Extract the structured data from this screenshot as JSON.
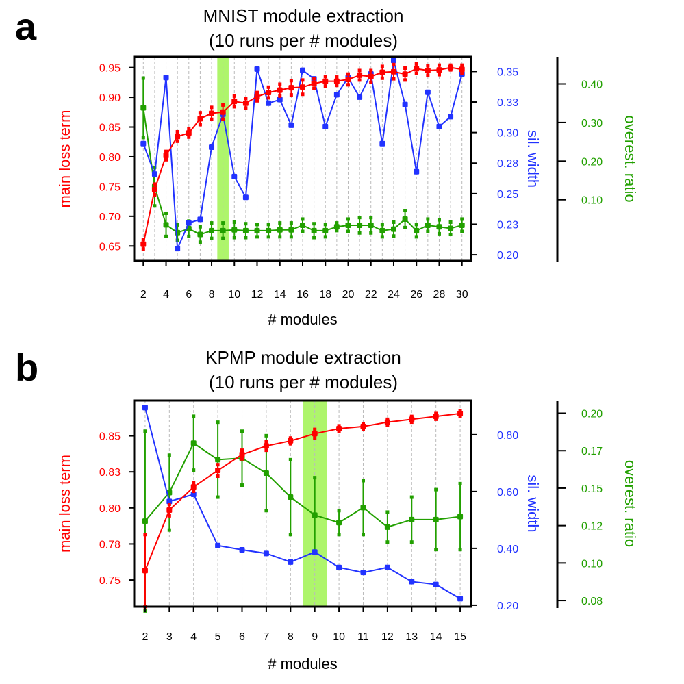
{
  "colors": {
    "loss": "#ff0000",
    "sil": "#2233ff",
    "over": "#22a000",
    "highlight": "#aef56b",
    "grid": "#bbbbbb"
  },
  "chart_data": [
    {
      "panel_label": "a",
      "type": "line",
      "title_line1": "MNIST module extraction",
      "title_line2": "(10 runs per # modules)",
      "xlabel": "# modules",
      "x_tick_labels": [
        "2",
        "4",
        "6",
        "8",
        "10",
        "12",
        "14",
        "16",
        "18",
        "20",
        "22",
        "24",
        "26",
        "28",
        "30"
      ],
      "x_tick_values": [
        2,
        4,
        6,
        8,
        10,
        12,
        14,
        16,
        18,
        20,
        22,
        24,
        26,
        28,
        30
      ],
      "xlim": [
        1.2,
        30.8
      ],
      "highlight_x": 9,
      "left_axis": {
        "label": "main loss term",
        "ylim": [
          0.625,
          0.968
        ],
        "tick_values": [
          0.65,
          0.7,
          0.75,
          0.8,
          0.85,
          0.9,
          0.95
        ],
        "tick_labels": [
          "0.65",
          "0.70",
          "0.75",
          "0.80",
          "0.85",
          "0.90",
          "0.95"
        ]
      },
      "right_axis": {
        "label": "sil. width",
        "ylim": [
          0.195,
          0.362
        ],
        "tick_values": [
          0.2,
          0.225,
          0.25,
          0.275,
          0.3,
          0.325,
          0.35
        ],
        "tick_labels": [
          "0.20",
          "0.23",
          "0.25",
          "0.28",
          "0.30",
          "0.33",
          "0.35"
        ]
      },
      "outer_axis": {
        "label": "overest. ratio",
        "ylim": [
          -0.06,
          0.47
        ],
        "tick_values": [
          0.1,
          0.2,
          0.3,
          0.4
        ],
        "tick_labels": [
          "0.10",
          "0.20",
          "0.30",
          "0.40"
        ]
      },
      "series": [
        {
          "name": "main loss term",
          "axis": "left",
          "color_key": "loss",
          "x": [
            2,
            3,
            4,
            5,
            6,
            7,
            8,
            9,
            10,
            11,
            12,
            13,
            14,
            15,
            16,
            17,
            18,
            19,
            20,
            21,
            22,
            23,
            24,
            25,
            26,
            27,
            28,
            29,
            30
          ],
          "y": [
            0.653,
            0.745,
            0.802,
            0.834,
            0.84,
            0.864,
            0.873,
            0.875,
            0.893,
            0.89,
            0.901,
            0.908,
            0.912,
            0.916,
            0.917,
            0.923,
            0.927,
            0.927,
            0.93,
            0.937,
            0.935,
            0.942,
            0.943,
            0.939,
            0.948,
            0.945,
            0.946,
            0.95,
            0.947
          ],
          "err": [
            0.008,
            0.009,
            0.007,
            0.008,
            0.007,
            0.01,
            0.01,
            0.012,
            0.009,
            0.008,
            0.007,
            0.009,
            0.01,
            0.012,
            0.012,
            0.008,
            0.008,
            0.007,
            0.009,
            0.008,
            0.01,
            0.01,
            0.012,
            0.01,
            0.008,
            0.008,
            0.008,
            0.004,
            0.007
          ]
        },
        {
          "name": "sil. width",
          "axis": "right",
          "color_key": "sil",
          "x": [
            2,
            3,
            4,
            5,
            6,
            7,
            8,
            9,
            10,
            11,
            12,
            13,
            14,
            15,
            16,
            17,
            18,
            19,
            20,
            21,
            22,
            23,
            24,
            25,
            26,
            27,
            28,
            29,
            30
          ],
          "y": [
            0.291,
            0.266,
            0.345,
            0.205,
            0.226,
            0.229,
            0.288,
            0.315,
            0.264,
            0.247,
            0.352,
            0.324,
            0.327,
            0.306,
            0.351,
            0.344,
            0.305,
            0.331,
            0.345,
            0.329,
            0.348,
            0.291,
            0.359,
            0.323,
            0.268,
            0.333,
            0.305,
            0.313,
            0.348
          ],
          "err": []
        },
        {
          "name": "overest. ratio",
          "axis": "outer",
          "color_key": "over",
          "x": [
            2,
            3,
            4,
            5,
            6,
            7,
            8,
            9,
            10,
            11,
            12,
            13,
            14,
            15,
            16,
            17,
            18,
            19,
            20,
            21,
            22,
            23,
            24,
            25,
            26,
            27,
            28,
            29,
            30
          ],
          "y": [
            0.338,
            0.134,
            0.035,
            0.015,
            0.025,
            0.01,
            0.02,
            0.02,
            0.022,
            0.02,
            0.02,
            0.02,
            0.022,
            0.022,
            0.034,
            0.02,
            0.02,
            0.03,
            0.034,
            0.034,
            0.034,
            0.02,
            0.024,
            0.05,
            0.02,
            0.034,
            0.03,
            0.026,
            0.034
          ],
          "err": [
            0.077,
            0.05,
            0.03,
            0.02,
            0.02,
            0.02,
            0.02,
            0.02,
            0.02,
            0.018,
            0.016,
            0.016,
            0.018,
            0.018,
            0.016,
            0.018,
            0.016,
            0.01,
            0.016,
            0.02,
            0.02,
            0.016,
            0.018,
            0.022,
            0.016,
            0.016,
            0.018,
            0.016,
            0.016
          ]
        }
      ]
    },
    {
      "panel_label": "b",
      "type": "line",
      "title_line1": "KPMP module extraction",
      "title_line2": "(10 runs per # modules)",
      "xlabel": "# modules",
      "x_tick_labels": [
        "2",
        "3",
        "4",
        "5",
        "6",
        "7",
        "8",
        "9",
        "10",
        "11",
        "12",
        "13",
        "14",
        "15"
      ],
      "x_tick_values": [
        2,
        3,
        4,
        5,
        6,
        7,
        8,
        9,
        10,
        11,
        12,
        13,
        14,
        15
      ],
      "xlim": [
        1.55,
        15.45
      ],
      "highlight_x": 9,
      "left_axis": {
        "label": "main loss term",
        "ylim": [
          0.7315,
          0.8745
        ],
        "tick_values": [
          0.75,
          0.775,
          0.8,
          0.825,
          0.85
        ],
        "tick_labels": [
          "0.75",
          "0.78",
          "0.80",
          "0.83",
          "0.85"
        ]
      },
      "right_axis": {
        "label": "sil. width",
        "ylim": [
          0.195,
          0.92
        ],
        "tick_values": [
          0.2,
          0.4,
          0.6,
          0.8
        ],
        "tick_labels": [
          "0.20",
          "0.40",
          "0.60",
          "0.80"
        ]
      },
      "outer_axis": {
        "label": "overest. ratio",
        "ylim": [
          0.07,
          0.208
        ],
        "tick_values": [
          0.075,
          0.1,
          0.125,
          0.15,
          0.175,
          0.2
        ],
        "tick_labels": [
          "0.08",
          "0.10",
          "0.12",
          "0.15",
          "0.17",
          "0.20"
        ]
      },
      "series": [
        {
          "name": "main loss term",
          "axis": "left",
          "color_key": "loss",
          "x": [
            2,
            3,
            4,
            5,
            6,
            7,
            8,
            9,
            10,
            11,
            12,
            13,
            14,
            15
          ],
          "y": [
            0.7565,
            0.7985,
            0.8145,
            0.826,
            0.837,
            0.843,
            0.8465,
            0.8515,
            0.855,
            0.8565,
            0.8595,
            0.8615,
            0.8635,
            0.8655
          ],
          "err": [
            0.025,
            0.004,
            0.003,
            0.004,
            0.003,
            0.003,
            0.002,
            0.003,
            0.002,
            0.002,
            0.002,
            0.002,
            0.002,
            0.002
          ]
        },
        {
          "name": "sil. width",
          "axis": "right",
          "color_key": "sil",
          "x": [
            2,
            3,
            4,
            5,
            6,
            7,
            8,
            9,
            10,
            11,
            12,
            13,
            14,
            15
          ],
          "y": [
            0.895,
            0.565,
            0.59,
            0.41,
            0.395,
            0.382,
            0.352,
            0.387,
            0.333,
            0.315,
            0.333,
            0.283,
            0.273,
            0.223
          ],
          "err": []
        },
        {
          "name": "overest. ratio",
          "axis": "outer",
          "color_key": "over",
          "x": [
            2,
            3,
            4,
            5,
            6,
            7,
            8,
            9,
            10,
            11,
            12,
            13,
            14,
            15
          ],
          "y": [
            0.128,
            0.147,
            0.18,
            0.169,
            0.17,
            0.16,
            0.144,
            0.132,
            0.127,
            0.137,
            0.124,
            0.129,
            0.129,
            0.131
          ],
          "err": [
            0.06,
            0.025,
            0.018,
            0.025,
            0.018,
            0.025,
            0.025,
            0.025,
            0.008,
            0.018,
            0.01,
            0.015,
            0.02,
            0.022
          ]
        }
      ]
    }
  ]
}
